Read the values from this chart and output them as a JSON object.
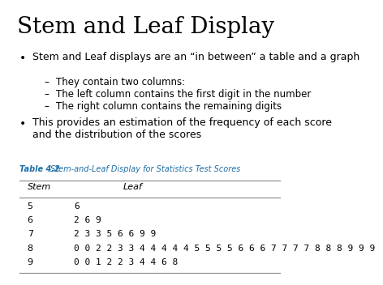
{
  "title": "Stem and Leaf Display",
  "bullet1": "Stem and Leaf displays are an “in between” a table and a graph",
  "sub1a": "They contain two columns:",
  "sub1b": "The left column contains the first digit in the number",
  "sub1c": "The right column contains the remaining digits",
  "bullet2": "This provides an estimation of the frequency of each score\nand the distribution of the scores",
  "table_label": "Table 4.2",
  "table_title": "Stem-and-Leaf Display for Statistics Test Scores",
  "col_stem": "Stem",
  "col_leaf": "Leaf",
  "stems": [
    "5",
    "6",
    "7",
    "8",
    "9"
  ],
  "leaves": [
    "6",
    "2 6 9",
    "2 3 3 5 6 6 9 9",
    "0 0 2 2 3 3 4 4 4 4 4 5 5 5 5 6 6 6 7 7 7 7 8 8 8 9 9 9",
    "0 0 1 2 2 3 4 4 6 8"
  ],
  "bg_color": "#ffffff",
  "text_color": "#000000",
  "table_header_color": "#1e6ea7",
  "title_font_size": 20,
  "body_font_size": 9,
  "sub_font_size": 8.5,
  "table_font_size": 8
}
